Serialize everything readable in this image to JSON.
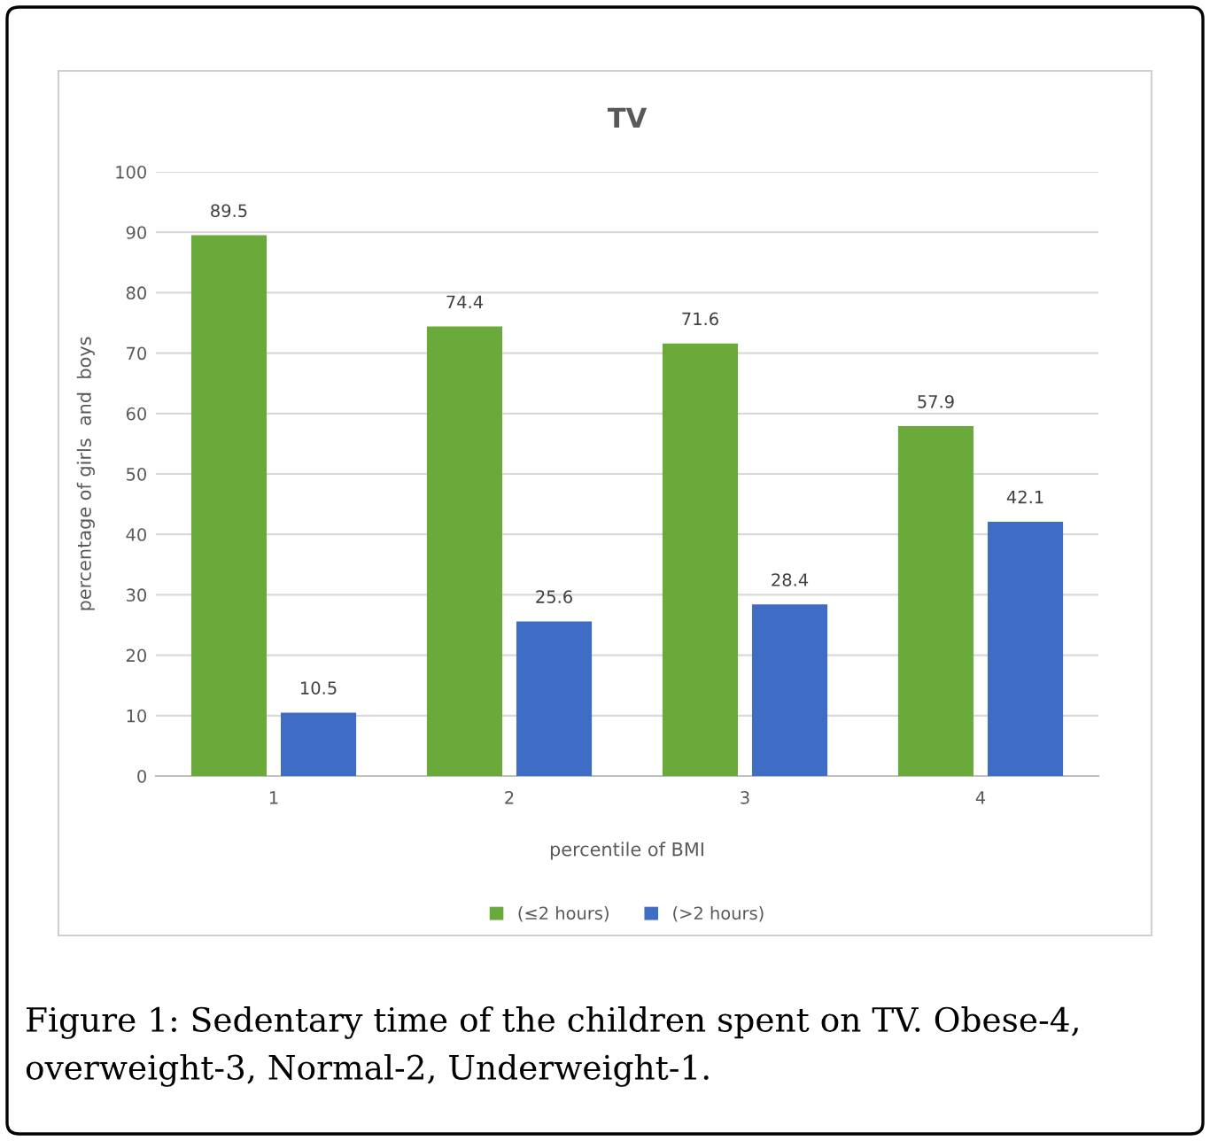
{
  "chart_data": {
    "type": "bar",
    "title": "TV",
    "xlabel": "percentile of BMI",
    "ylabel": "percentage of girls  and  boys",
    "categories": [
      "1",
      "2",
      "3",
      "4"
    ],
    "series": [
      {
        "name": "(≤2 hours)",
        "color": "#6aaa3a",
        "values": [
          89.5,
          74.4,
          71.6,
          57.9
        ]
      },
      {
        "name": "(>2 hours)",
        "color": "#3f6cc4",
        "values": [
          10.5,
          25.6,
          28.4,
          42.1
        ]
      }
    ],
    "ylim": [
      0,
      100
    ],
    "yticks": [
      0,
      10,
      20,
      30,
      40,
      50,
      60,
      70,
      80,
      90,
      100
    ],
    "grid": "y",
    "legend": "bottom",
    "data_labels": true,
    "annotations": [
      "Figure 1: Sedentary time of the children spent on TV. Obese-4, overweight-3, Normal-2, Underweight-1."
    ]
  }
}
